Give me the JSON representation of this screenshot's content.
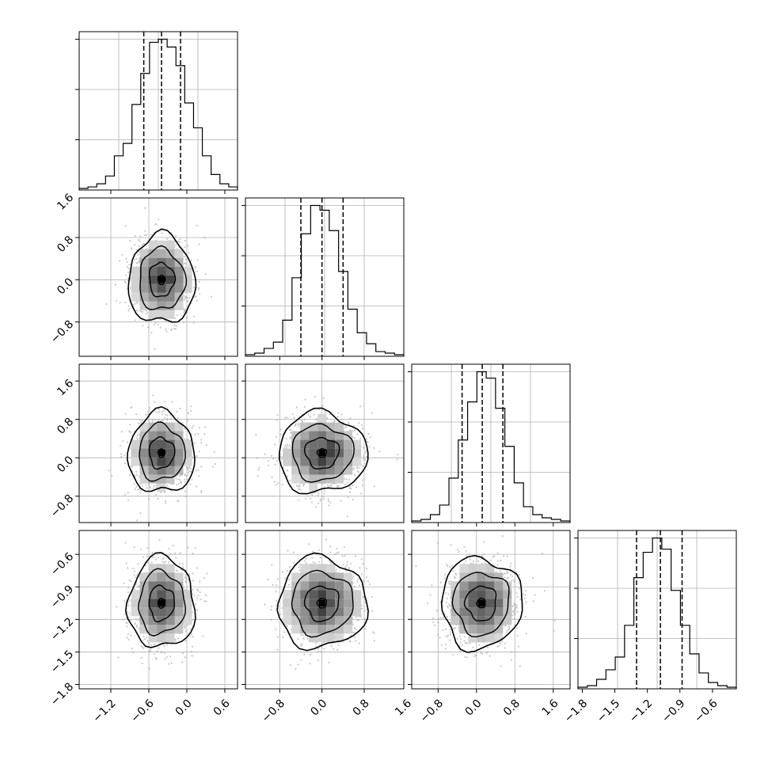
{
  "chart_data": {
    "type": "corner",
    "title": "",
    "grid": true,
    "params": [
      {
        "mean": -0.4,
        "sd": 0.25,
        "quantiles": [
          -0.68,
          -0.4,
          -0.1
        ],
        "range": [
          -1.7,
          0.8
        ],
        "ticks": [
          -1.2,
          -0.6,
          0.0,
          0.6
        ],
        "tick_labels": [
          "−1.2",
          "−0.6",
          "0.0",
          "0.6"
        ]
      },
      {
        "mean": 0.0,
        "sd": 0.4,
        "quantiles": [
          -0.4,
          0.0,
          0.4
        ],
        "range": [
          -1.45,
          1.55
        ],
        "ticks": [
          -0.8,
          0.0,
          0.8,
          1.6
        ],
        "tick_labels": [
          "−0.8",
          "0.0",
          "0.8",
          "1.6"
        ]
      },
      {
        "mean": 0.1,
        "sd": 0.4,
        "quantiles": [
          -0.3,
          0.12,
          0.55
        ],
        "range": [
          -1.35,
          1.95
        ],
        "ticks": [
          -0.8,
          0.0,
          0.8,
          1.6
        ],
        "tick_labels": [
          "−0.8",
          "0.0",
          "0.8",
          "1.6"
        ]
      },
      {
        "mean": -1.05,
        "sd": 0.2,
        "quantiles": [
          -1.3,
          -1.08,
          -0.88
        ],
        "range": [
          -1.84,
          -0.38
        ],
        "ticks": [
          -1.8,
          -1.5,
          -1.2,
          -0.9,
          -0.6
        ],
        "tick_labels": [
          "−1.8",
          "−1.5",
          "−1.2",
          "−0.9",
          "−0.6"
        ]
      }
    ],
    "histograms": [
      [
        1,
        2,
        4,
        9,
        22,
        30,
        55,
        75,
        95,
        97,
        92,
        80,
        56,
        40,
        22,
        10,
        4,
        2
      ],
      [
        1,
        2,
        5,
        9,
        23,
        50,
        78,
        96,
        93,
        80,
        54,
        30,
        15,
        8,
        3,
        2,
        1
      ],
      [
        1,
        2,
        5,
        11,
        28,
        52,
        76,
        95,
        91,
        72,
        48,
        25,
        10,
        5,
        3,
        2,
        1
      ],
      [
        1,
        2,
        6,
        12,
        20,
        40,
        70,
        86,
        95,
        88,
        62,
        40,
        22,
        10,
        4,
        2,
        1
      ]
    ]
  }
}
